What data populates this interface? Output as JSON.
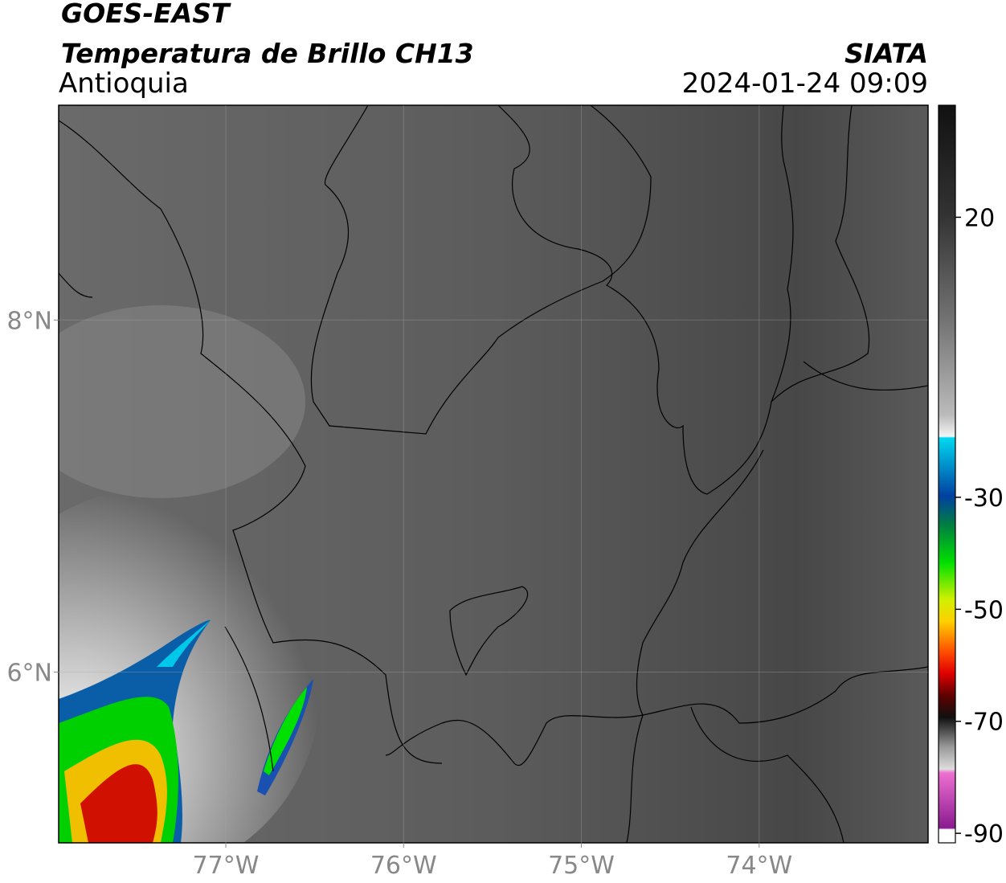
{
  "header": {
    "title": "GOES-EAST",
    "subtitle": "Temperatura de Brillo CH13",
    "region": "Antioquia",
    "source": "SIATA",
    "datetime": "2024-01-24 09:09"
  },
  "map": {
    "xlim": [
      -77.94,
      -73.05
    ],
    "ylim": [
      5.03,
      9.22
    ],
    "xticks": [
      {
        "value": -77,
        "label": "77°W"
      },
      {
        "value": -76,
        "label": "76°W"
      },
      {
        "value": -75,
        "label": "75°W"
      },
      {
        "value": -74,
        "label": "74°W"
      }
    ],
    "yticks": [
      {
        "value": 8,
        "label": "8°N"
      },
      {
        "value": 6,
        "label": "6°N"
      }
    ],
    "grid": true
  },
  "colorbar": {
    "lim": [
      -91.7,
      40
    ],
    "ticks": [
      20,
      -30,
      -50,
      -70,
      -90
    ]
  }
}
